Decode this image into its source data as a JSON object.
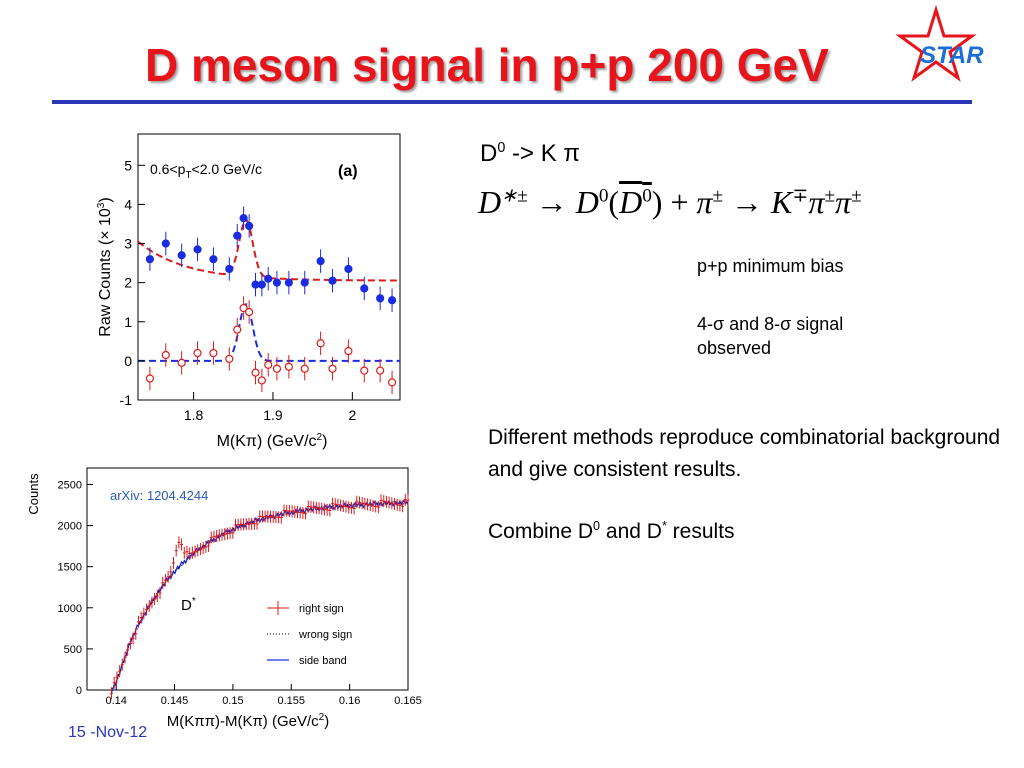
{
  "slide": {
    "title": "D meson signal in p+p 200 GeV",
    "logo_text": "STAR",
    "date": "15 -Nov-12",
    "colors": {
      "title": "#e8141c",
      "rule": "#2c35b8",
      "logo": "#e8141c"
    }
  },
  "text": {
    "d0_decay": "D0 -> K π",
    "dstar_decay": "D*± → D0(D0bar) + π± → K∓π±π±",
    "minbias": "p+p minimum bias",
    "sigma_line1": "4-σ and 8-σ signal",
    "sigma_line2": "observed",
    "methods": "Different methods reproduce combinatorial background and give consistent results.",
    "combine": "Combine D0 and D* results"
  },
  "chart_data": [
    {
      "type": "scatter",
      "panel_label": "(a)",
      "annotation": "0.6<pT<2.0 GeV/c",
      "xlabel": "M(Kπ) (GeV/c2)",
      "ylabel": "Raw Counts (× 10^3)",
      "xlim": [
        1.73,
        2.06
      ],
      "ylim": [
        -1,
        5.8
      ],
      "xticks": [
        "1.8",
        "1.9",
        "2"
      ],
      "yticks": [
        "-1",
        "0",
        "1",
        "2",
        "3",
        "4",
        "5"
      ],
      "series": [
        {
          "color": "#1a2ce0",
          "marker": "filled-circle",
          "x": [
            1.745,
            1.765,
            1.785,
            1.805,
            1.825,
            1.845,
            1.855,
            1.863,
            1.87,
            1.878,
            1.886,
            1.894,
            1.905,
            1.92,
            1.94,
            1.96,
            1.975,
            1.995,
            2.015,
            2.035,
            2.05
          ],
          "y": [
            2.6,
            3.0,
            2.7,
            2.85,
            2.6,
            2.35,
            3.2,
            3.65,
            3.45,
            1.95,
            1.95,
            2.1,
            2.0,
            2.0,
            2.0,
            2.55,
            2.05,
            2.35,
            1.85,
            1.6,
            1.55
          ],
          "err": [
            0.3,
            0.3,
            0.3,
            0.3,
            0.3,
            0.3,
            0.3,
            0.3,
            0.3,
            0.3,
            0.3,
            0.3,
            0.3,
            0.3,
            0.3,
            0.3,
            0.3,
            0.3,
            0.3,
            0.3,
            0.3
          ]
        },
        {
          "color": "#e01a1a",
          "marker": "open-circle",
          "x": [
            1.745,
            1.765,
            1.785,
            1.805,
            1.825,
            1.845,
            1.855,
            1.863,
            1.87,
            1.878,
            1.886,
            1.894,
            1.905,
            1.92,
            1.94,
            1.96,
            1.975,
            1.995,
            2.015,
            2.035,
            2.05
          ],
          "y": [
            -0.45,
            0.15,
            -0.05,
            0.2,
            0.2,
            0.05,
            0.8,
            1.35,
            1.25,
            -0.3,
            -0.5,
            -0.1,
            -0.2,
            -0.15,
            -0.2,
            0.45,
            -0.2,
            0.25,
            -0.25,
            -0.25,
            -0.55
          ],
          "err": [
            0.3,
            0.3,
            0.3,
            0.3,
            0.3,
            0.3,
            0.3,
            0.3,
            0.3,
            0.3,
            0.3,
            0.3,
            0.3,
            0.3,
            0.3,
            0.3,
            0.3,
            0.3,
            0.3,
            0.3,
            0.3
          ]
        }
      ],
      "fits": [
        {
          "style": "red dashed",
          "description": "background + gaussian fit"
        },
        {
          "style": "blue dashed",
          "description": "gaussian signal fit"
        }
      ]
    },
    {
      "type": "line",
      "annotation": "arXiv: 1204.4244",
      "marker_label": "D*",
      "xlabel": "M(Kππ)-M(Kπ) (GeV/c2)",
      "ylabel": "Counts",
      "xlim": [
        0.1375,
        0.165
      ],
      "ylim": [
        0,
        2700
      ],
      "xticks": [
        "0.14",
        "0.145",
        "0.15",
        "0.155",
        "0.16",
        "0.165"
      ],
      "yticks": [
        "0",
        "500",
        "1000",
        "1500",
        "2000",
        "2500"
      ],
      "legend": [
        "right sign",
        "wrong sign",
        "side band"
      ],
      "legend_position": "bottom-right",
      "series": [
        {
          "name": "right sign",
          "color": "#e01a1a",
          "style": "error-crosses"
        },
        {
          "name": "wrong sign",
          "color": "#000000",
          "style": "dotted"
        },
        {
          "name": "side band",
          "color": "#1a2ce0",
          "style": "solid"
        }
      ],
      "model": {
        "x0": 0.1396,
        "amplitude": 2300,
        "peak_x": 0.1454,
        "peak_height": 1820
      }
    }
  ]
}
